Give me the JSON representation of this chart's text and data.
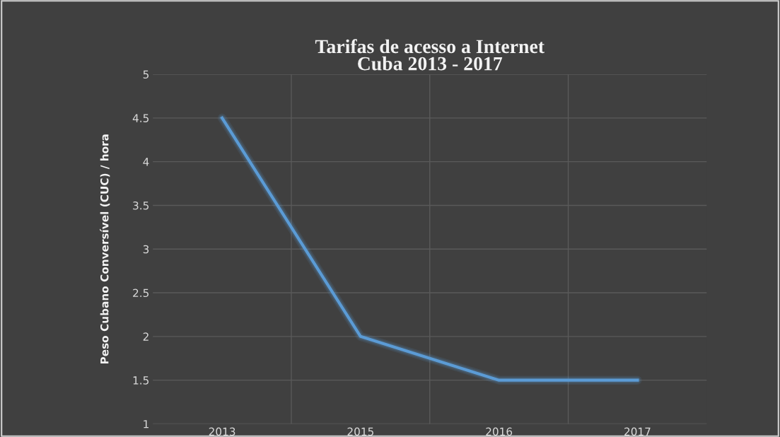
{
  "chart_data": {
    "type": "line",
    "title": "Tarifas de acesso a Internet\nCuba 2013 - 2017",
    "ylabel": "Peso Cubano Conversível (CUC) / hora",
    "categories": [
      "2013",
      "2015",
      "2016",
      "2017"
    ],
    "series": [
      {
        "color": "#5b9bd5",
        "values": [
          4.5,
          2,
          1.5,
          1.5
        ]
      }
    ],
    "ylim": [
      1,
      5
    ],
    "yticks": [
      1,
      1.5,
      2,
      2.5,
      3,
      3.5,
      4,
      4.5,
      5
    ],
    "grid": true,
    "legend": false,
    "marker": "none",
    "line_style": "solid"
  }
}
